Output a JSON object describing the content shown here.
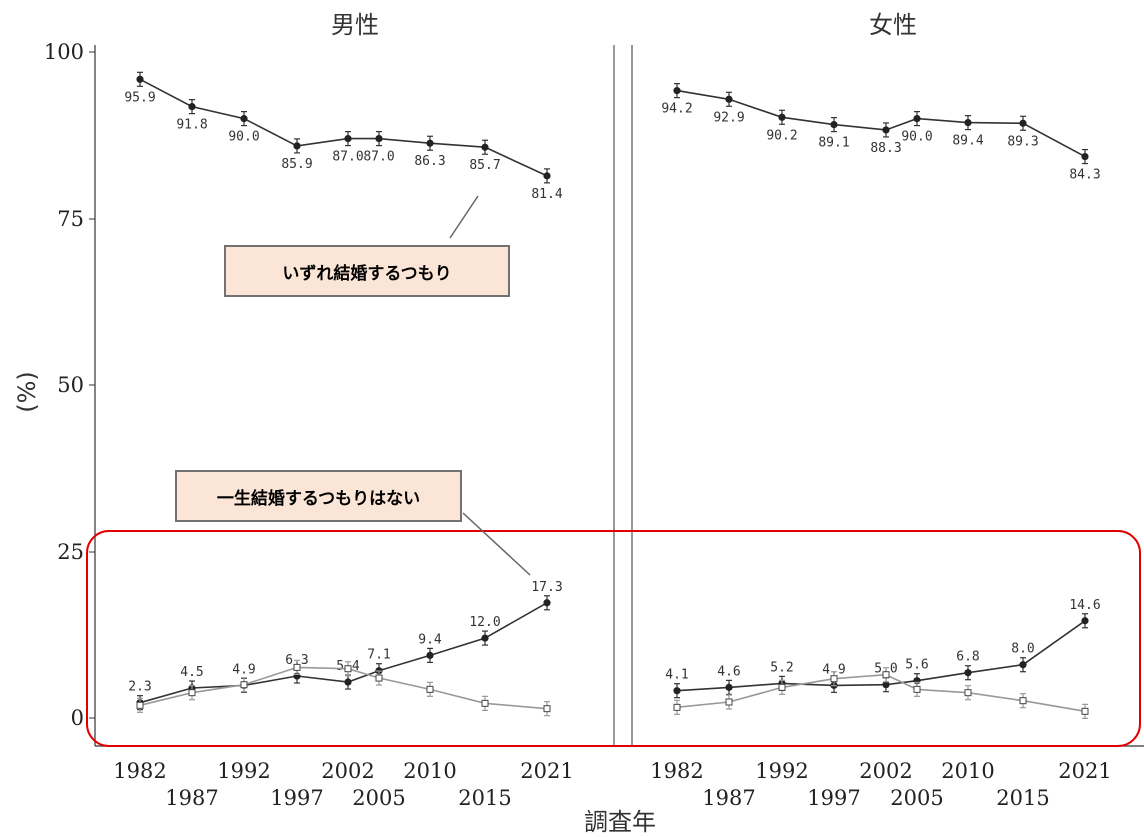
{
  "panels": [
    {
      "title": "男性"
    },
    {
      "title": "女性"
    }
  ],
  "axis": {
    "ylabel": "(%)",
    "xlabel": "調査年",
    "yticks": [
      "0",
      "25",
      "50",
      "75",
      "100"
    ],
    "xticks_upper": [
      "1982",
      "1992",
      "2002",
      "2010",
      "2021"
    ],
    "xticks_lower": [
      "1987",
      "1997",
      "2005",
      "2015"
    ]
  },
  "annotations": {
    "marry": "いずれ結婚するつもり",
    "never": "一生結婚するつもりはない"
  },
  "colors": {
    "line_main": "#333333",
    "line_other": "#999999",
    "highlight": "#e00000",
    "callout_fill": "#fbe5d6",
    "callout_border": "#767171"
  },
  "chart_data": [
    {
      "type": "line",
      "title": "男性",
      "x": [
        1982,
        1987,
        1992,
        1997,
        2002,
        2005,
        2010,
        2015,
        2021
      ],
      "xlabel": "調査年",
      "ylabel": "(%)",
      "ylim": [
        0,
        100
      ],
      "grid": false,
      "series": [
        {
          "name": "いずれ結婚するつもり",
          "values": [
            95.9,
            91.8,
            90.0,
            85.9,
            87.0,
            87.0,
            86.3,
            85.7,
            81.4
          ],
          "labels": [
            "95.9",
            "91.8",
            "90.0",
            "85.9",
            "87.0",
            "87.0",
            "86.3",
            "85.7",
            "81.4"
          ]
        },
        {
          "name": "一生結婚するつもりはない",
          "values": [
            2.3,
            4.5,
            4.9,
            6.3,
            5.4,
            7.1,
            9.4,
            12.0,
            17.3
          ],
          "labels": [
            "2.3",
            "4.5",
            "4.9",
            "6.3",
            "5.4",
            "7.1",
            "9.4",
            "12.0",
            "17.3"
          ]
        },
        {
          "values": [
            1.9,
            3.8,
            5.0,
            7.6,
            7.4,
            6.0,
            4.3,
            2.2,
            1.4
          ]
        }
      ]
    },
    {
      "type": "line",
      "title": "女性",
      "x": [
        1982,
        1987,
        1992,
        1997,
        2002,
        2005,
        2010,
        2015,
        2021
      ],
      "xlabel": "調査年",
      "ylabel": "(%)",
      "ylim": [
        0,
        100
      ],
      "grid": false,
      "series": [
        {
          "name": "いずれ結婚するつもり",
          "values": [
            94.2,
            92.9,
            90.2,
            89.1,
            88.3,
            90.0,
            89.4,
            89.3,
            84.3
          ],
          "labels": [
            "94.2",
            "92.9",
            "90.2",
            "89.1",
            "88.3",
            "90.0",
            "89.4",
            "89.3",
            "84.3"
          ]
        },
        {
          "name": "一生結婚するつもりはない",
          "values": [
            4.1,
            4.6,
            5.2,
            4.9,
            5.0,
            5.6,
            6.8,
            8.0,
            14.6
          ],
          "labels": [
            "4.1",
            "4.6",
            "5.2",
            "4.9",
            "5.0",
            "5.6",
            "6.8",
            "8.0",
            "14.6"
          ]
        },
        {
          "values": [
            1.6,
            2.4,
            4.6,
            5.9,
            6.5,
            4.3,
            3.8,
            2.6,
            1.0
          ]
        }
      ]
    }
  ]
}
